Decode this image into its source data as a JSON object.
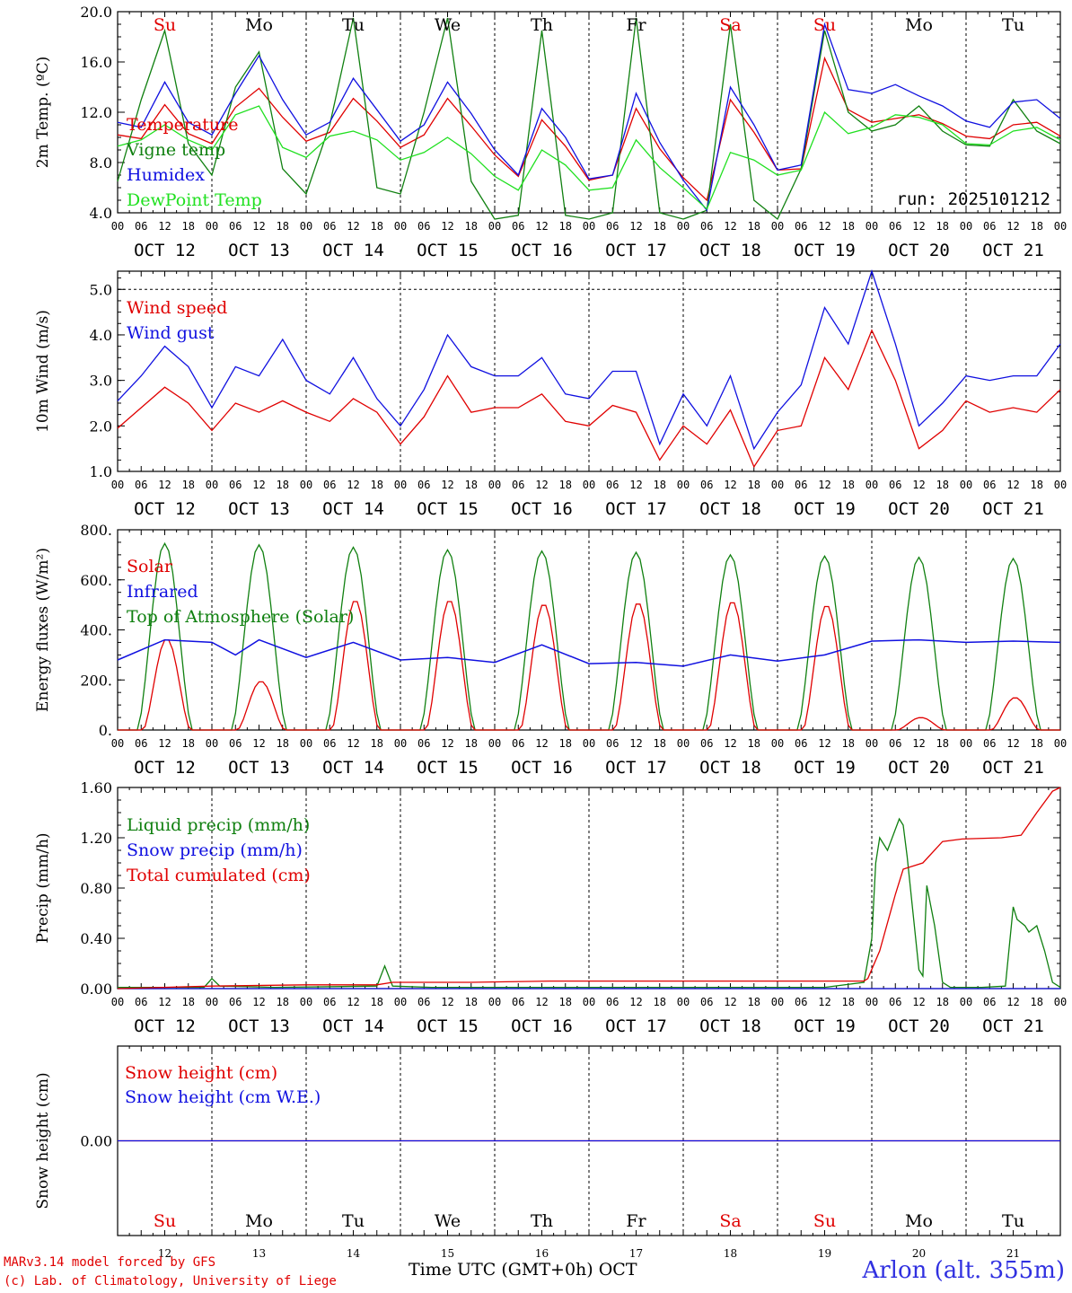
{
  "days": [
    "OCT 12",
    "OCT 13",
    "OCT 14",
    "OCT 15",
    "OCT 16",
    "OCT 17",
    "OCT 18",
    "OCT 19",
    "OCT 20",
    "OCT 21"
  ],
  "weekdays": [
    "Su",
    "Mo",
    "Tu",
    "We",
    "Th",
    "Fr",
    "Sa",
    "Su",
    "Mo",
    "Tu"
  ],
  "weekday_colors": [
    "#e00000",
    "#000000",
    "#000000",
    "#000000",
    "#000000",
    "#000000",
    "#e00000",
    "#e00000",
    "#000000",
    "#000000"
  ],
  "hour_labels": [
    "00",
    "06",
    "12",
    "18"
  ],
  "bottom_day_numbers": [
    "12",
    "13",
    "14",
    "15",
    "16",
    "17",
    "18",
    "19",
    "20",
    "21"
  ],
  "x_title": "Time UTC (GMT+0h) OCT",
  "footer": {
    "line1": "MARv3.14 model forced by GFS",
    "line2": "(c) Lab. of Climatology, University of Liege"
  },
  "station": "Arlon (alt. 355m)",
  "colors": {
    "red": "#e00000",
    "green": "#108010",
    "blue": "#1010e0",
    "lightgreen": "#20e020"
  },
  "chart_data": [
    {
      "type": "line",
      "title": "2m Temp.",
      "ylabel": "2m Temp. (ºC)",
      "ylim": [
        4.0,
        20.0
      ],
      "yticks": [
        "4.0",
        "8.0",
        "12.0",
        "16.0",
        "20.0"
      ],
      "ytick_values": [
        4,
        8,
        12,
        16,
        20
      ],
      "annotation": "run: 2025101212",
      "x_unit": "hours since Oct 12 00 UTC",
      "series": [
        {
          "name": "Temperature",
          "color": "#e00000",
          "x": [
            0,
            6,
            12,
            18,
            24,
            30,
            36,
            42,
            48,
            54,
            60,
            66,
            72,
            78,
            84,
            90,
            96,
            102,
            108,
            114,
            120,
            126,
            132,
            138,
            144,
            150,
            156,
            162,
            168,
            174,
            180,
            186,
            192,
            198,
            204,
            210,
            216,
            222,
            228,
            234,
            240
          ],
          "y": [
            10.2,
            9.9,
            12.6,
            10.3,
            9.5,
            12.4,
            13.9,
            11.6,
            9.7,
            10.4,
            13.1,
            11.3,
            9.2,
            10.2,
            13.1,
            10.9,
            8.6,
            6.9,
            11.4,
            9.3,
            6.6,
            7.0,
            12.3,
            9.1,
            6.8,
            5.0,
            13.0,
            10.4,
            7.4,
            7.5,
            16.3,
            12.2,
            11.2,
            11.5,
            11.8,
            11.1,
            10.1,
            9.9,
            11.0,
            11.2,
            10.1
          ]
        },
        {
          "name": "Vigne temp",
          "color": "#108010",
          "x": [
            0,
            6,
            12,
            18,
            24,
            30,
            36,
            42,
            48,
            54,
            60,
            66,
            72,
            78,
            84,
            90,
            96,
            102,
            108,
            114,
            120,
            126,
            132,
            138,
            144,
            150,
            156,
            162,
            168,
            174,
            180,
            186,
            192,
            198,
            204,
            210,
            216,
            222,
            228,
            234,
            240
          ],
          "y": [
            6.5,
            13.0,
            18.5,
            9.5,
            7.0,
            14.0,
            16.8,
            7.5,
            5.5,
            11.0,
            19.5,
            6.0,
            5.5,
            12.0,
            19.5,
            6.5,
            3.5,
            3.8,
            18.5,
            3.8,
            3.5,
            4.0,
            19.5,
            4.0,
            3.5,
            4.2,
            19.0,
            5.0,
            3.5,
            7.5,
            18.5,
            12.0,
            10.5,
            11.0,
            12.5,
            10.5,
            9.4,
            9.3,
            13.0,
            10.5,
            9.5
          ]
        },
        {
          "name": "Humidex",
          "color": "#1010e0",
          "x": [
            0,
            6,
            12,
            18,
            24,
            30,
            36,
            42,
            48,
            54,
            60,
            66,
            72,
            78,
            84,
            90,
            96,
            102,
            108,
            114,
            120,
            126,
            132,
            138,
            144,
            150,
            156,
            162,
            168,
            174,
            180,
            186,
            192,
            198,
            204,
            210,
            216,
            222,
            228,
            234,
            240
          ],
          "y": [
            11.2,
            10.8,
            14.4,
            11.2,
            10.2,
            13.5,
            16.5,
            13.0,
            10.2,
            11.2,
            14.7,
            12.2,
            9.7,
            11.0,
            14.4,
            11.9,
            9.0,
            7.0,
            12.3,
            10.0,
            6.7,
            7.0,
            13.5,
            9.6,
            6.6,
            4.2,
            14.0,
            11.0,
            7.4,
            7.8,
            19.0,
            13.8,
            13.5,
            14.2,
            13.3,
            12.5,
            11.3,
            10.8,
            12.8,
            13.0,
            11.5
          ]
        },
        {
          "name": "DewPoint Temp",
          "color": "#20e020",
          "x": [
            0,
            6,
            12,
            18,
            24,
            30,
            36,
            42,
            48,
            54,
            60,
            66,
            72,
            78,
            84,
            90,
            96,
            102,
            108,
            114,
            120,
            126,
            132,
            138,
            144,
            150,
            156,
            162,
            168,
            174,
            180,
            186,
            192,
            198,
            204,
            210,
            216,
            222,
            228,
            234,
            240
          ],
          "y": [
            9.3,
            9.8,
            11.0,
            9.8,
            9.0,
            11.8,
            12.5,
            9.2,
            8.4,
            10.1,
            10.5,
            9.8,
            8.2,
            8.8,
            10.0,
            8.7,
            6.9,
            5.8,
            9.0,
            7.8,
            5.8,
            6.0,
            9.8,
            7.6,
            6.0,
            4.3,
            8.8,
            8.2,
            7.0,
            7.4,
            12.0,
            10.3,
            10.8,
            11.8,
            11.6,
            11.0,
            9.5,
            9.4,
            10.5,
            10.8,
            9.8
          ]
        }
      ]
    },
    {
      "type": "line",
      "title": "10m Wind",
      "ylabel": "10m Wind (m/s)",
      "ylim": [
        1.0,
        5.4
      ],
      "yticks": [
        "1.0",
        "2.0",
        "3.0",
        "4.0",
        "5.0"
      ],
      "ytick_values": [
        1,
        2,
        3,
        4,
        5
      ],
      "dashed_line_at": 5.0,
      "x_unit": "hours since Oct 12 00 UTC",
      "series": [
        {
          "name": "Wind speed",
          "color": "#e00000",
          "x": [
            0,
            6,
            12,
            18,
            24,
            30,
            36,
            42,
            48,
            54,
            60,
            66,
            72,
            78,
            84,
            90,
            96,
            102,
            108,
            114,
            120,
            126,
            132,
            138,
            144,
            150,
            156,
            162,
            168,
            174,
            180,
            186,
            192,
            198,
            204,
            210,
            216,
            222,
            228,
            234,
            240
          ],
          "y": [
            1.95,
            2.4,
            2.85,
            2.5,
            1.9,
            2.5,
            2.3,
            2.55,
            2.3,
            2.1,
            2.6,
            2.3,
            1.6,
            2.2,
            3.1,
            2.3,
            2.4,
            2.4,
            2.7,
            2.1,
            2.0,
            2.45,
            2.3,
            1.25,
            2.0,
            1.6,
            2.35,
            1.1,
            1.9,
            2.0,
            3.5,
            2.8,
            4.1,
            3.0,
            1.5,
            1.9,
            2.55,
            2.3,
            2.4,
            2.3,
            2.8
          ]
        },
        {
          "name": "Wind gust",
          "color": "#1010e0",
          "x": [
            0,
            6,
            12,
            18,
            24,
            30,
            36,
            42,
            48,
            54,
            60,
            66,
            72,
            78,
            84,
            90,
            96,
            102,
            108,
            114,
            120,
            126,
            132,
            138,
            144,
            150,
            156,
            162,
            168,
            174,
            180,
            186,
            192,
            198,
            204,
            210,
            216,
            222,
            228,
            234,
            240
          ],
          "y": [
            2.55,
            3.1,
            3.75,
            3.3,
            2.4,
            3.3,
            3.1,
            3.9,
            3.0,
            2.7,
            3.5,
            2.6,
            2.0,
            2.8,
            4.0,
            3.3,
            3.1,
            3.1,
            3.5,
            2.7,
            2.6,
            3.2,
            3.2,
            1.6,
            2.7,
            2.0,
            3.1,
            1.5,
            2.3,
            2.9,
            4.6,
            3.8,
            5.4,
            3.8,
            2.0,
            2.5,
            3.1,
            3.0,
            3.1,
            3.1,
            3.8
          ]
        }
      ]
    },
    {
      "type": "line",
      "title": "Energy fluxes",
      "ylabel": "Energy fluxes (W/m²)",
      "ylim": [
        0,
        800
      ],
      "yticks": [
        "0.",
        "200.",
        "400.",
        "600.",
        "800."
      ],
      "ytick_values": [
        0,
        200,
        400,
        600,
        800
      ],
      "x_unit": "hours since Oct 12 00 UTC",
      "daily_peaks": {
        "Solar": [
          365,
          195,
          520,
          520,
          505,
          510,
          515,
          500,
          50,
          130
        ],
        "Top of Atmosphere (Solar)": [
          745,
          740,
          730,
          720,
          715,
          710,
          700,
          695,
          690,
          685
        ]
      },
      "infrared_curve": {
        "x": [
          0,
          12,
          24,
          30,
          36,
          48,
          60,
          72,
          84,
          96,
          108,
          120,
          132,
          144,
          156,
          168,
          180,
          192,
          204,
          216,
          228,
          240
        ],
        "y": [
          280,
          360,
          350,
          300,
          360,
          290,
          350,
          280,
          290,
          270,
          340,
          265,
          270,
          255,
          300,
          275,
          300,
          355,
          360,
          350,
          355,
          350
        ]
      },
      "series_names": [
        "Solar",
        "Infrared",
        "Top of Atmosphere (Solar)"
      ],
      "series_colors": [
        "#e00000",
        "#1010e0",
        "#108010"
      ]
    },
    {
      "type": "line",
      "title": "Precip",
      "ylabel": "Precip (mm/h)",
      "ylim": [
        0,
        1.6
      ],
      "yticks": [
        "0.00",
        "0.40",
        "0.80",
        "1.20",
        "1.60"
      ],
      "ytick_values": [
        0,
        0.4,
        0.8,
        1.2,
        1.6
      ],
      "x_unit": "hours since Oct 12 00 UTC",
      "series": [
        {
          "name": "Liquid precip (mm/h)",
          "color": "#108010",
          "x": [
            0,
            22,
            24,
            26,
            40,
            66,
            68,
            70,
            80,
            180,
            190,
            192,
            193,
            194,
            196,
            199,
            200,
            201,
            204,
            205,
            206,
            208,
            210,
            212,
            220,
            226,
            228,
            229,
            231,
            232,
            234,
            236,
            238,
            240
          ],
          "y": [
            0.01,
            0.01,
            0.08,
            0.02,
            0.01,
            0.02,
            0.18,
            0.02,
            0.01,
            0.01,
            0.05,
            0.4,
            1.0,
            1.2,
            1.1,
            1.35,
            1.3,
            1.05,
            0.15,
            0.1,
            0.82,
            0.5,
            0.05,
            0.01,
            0.01,
            0.02,
            0.65,
            0.55,
            0.5,
            0.45,
            0.5,
            0.3,
            0.05,
            0.01
          ]
        },
        {
          "name": "Snow precip (mm/h)",
          "color": "#1010e0",
          "x": [
            0,
            240
          ],
          "y": [
            0,
            0
          ]
        },
        {
          "name": "Total cumulated (cm)",
          "color": "#e00000",
          "x": [
            0,
            24,
            48,
            66,
            70,
            90,
            110,
            150,
            190,
            191,
            194,
            198,
            200,
            205,
            210,
            215,
            225,
            230,
            234,
            238,
            240
          ],
          "y": [
            0.0,
            0.02,
            0.03,
            0.03,
            0.05,
            0.05,
            0.06,
            0.06,
            0.06,
            0.08,
            0.3,
            0.75,
            0.95,
            1.0,
            1.17,
            1.19,
            1.2,
            1.22,
            1.4,
            1.57,
            1.6
          ]
        }
      ]
    },
    {
      "type": "line",
      "title": "Snow height",
      "ylabel": "Snow height (cm)",
      "ylim": [
        -1,
        1
      ],
      "yticks": [
        "0.00"
      ],
      "ytick_values": [
        0
      ],
      "x_unit": "hours since Oct 12 00 UTC",
      "series": [
        {
          "name": "Snow height (cm)",
          "color": "#e00000",
          "x": [
            0,
            240
          ],
          "y": [
            0,
            0
          ]
        },
        {
          "name": "Snow height (cm W.E.)",
          "color": "#1010e0",
          "x": [
            0,
            240
          ],
          "y": [
            0,
            0
          ]
        }
      ]
    }
  ]
}
